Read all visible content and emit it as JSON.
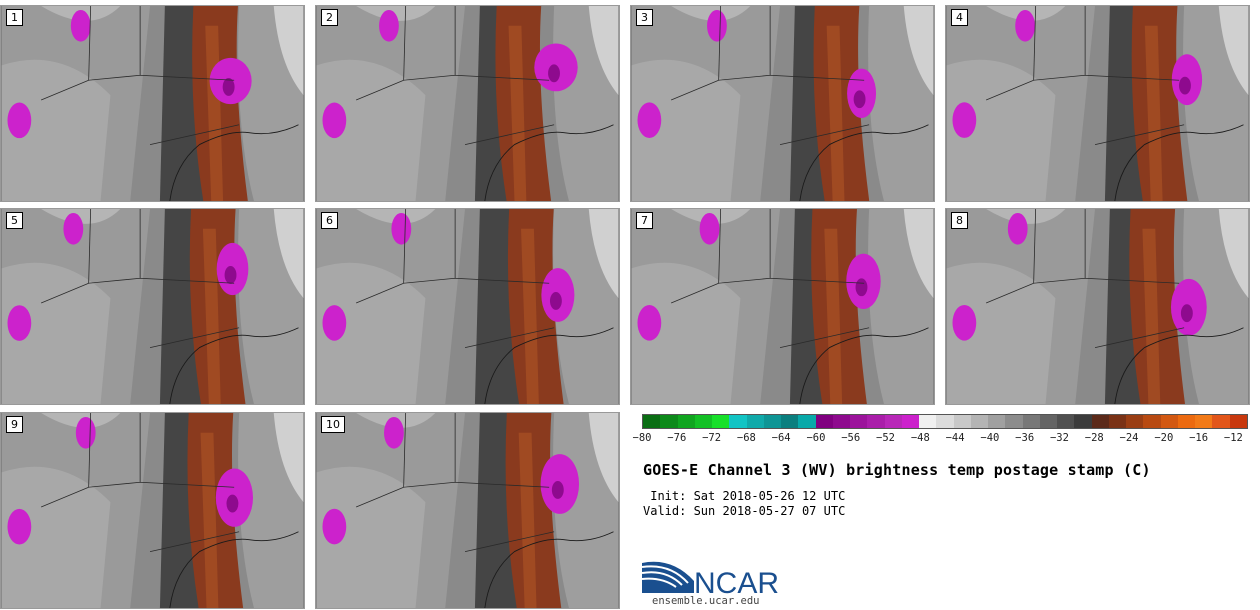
{
  "panels": [
    "1",
    "2",
    "3",
    "4",
    "5",
    "6",
    "7",
    "8",
    "9",
    "10"
  ],
  "colorbar": {
    "colors": [
      "#0a6e14",
      "#0d8a1a",
      "#10a51f",
      "#13c025",
      "#18e02a",
      "#12c4c4",
      "#10aaaa",
      "#0e9595",
      "#0b7f7f",
      "#08a9a9",
      "#800080",
      "#8e0a8e",
      "#9c149c",
      "#aa1eaa",
      "#b828b8",
      "#cc22cc",
      "#f0f0f0",
      "#dcdcdc",
      "#c8c8c8",
      "#b4b4b4",
      "#a0a0a0",
      "#8c8c8c",
      "#787878",
      "#646464",
      "#505050",
      "#3c3c3c",
      "#5c2a1a",
      "#7a3216",
      "#9a3e14",
      "#b84a12",
      "#d25812",
      "#ec6a10",
      "#f27a18",
      "#e2561a",
      "#c8380e"
    ],
    "ticks": [
      "−80",
      "−76",
      "−72",
      "−68",
      "−64",
      "−60",
      "−56",
      "−52",
      "−48",
      "−44",
      "−40",
      "−36",
      "−32",
      "−28",
      "−24",
      "−20",
      "−16",
      "−12"
    ]
  },
  "title": "GOES-E Channel 3 (WV) brightness temp postage stamp (C)",
  "init_line": " Init: Sat 2018-05-26 12 UTC",
  "valid_line": "Valid: Sun 2018-05-27 07 UTC",
  "logo": {
    "text": "NCAR",
    "url": "ensemble.ucar.edu"
  }
}
